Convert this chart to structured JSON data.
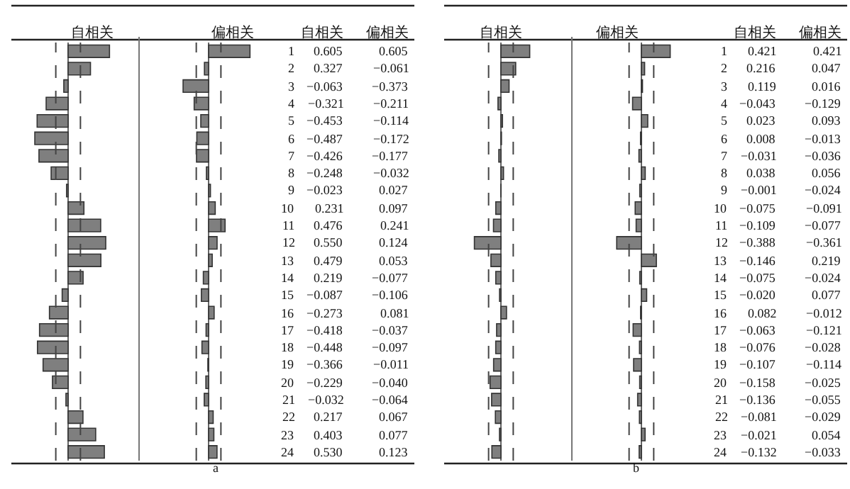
{
  "chart_data": [
    {
      "type": "bar",
      "orientation": "horizontal",
      "title": "自相关",
      "annotations": [
        "自相关",
        "a"
      ],
      "tick_labels": "y",
      "categories": [
        "1",
        "2",
        "3",
        "4",
        "5",
        "6",
        "7",
        "8",
        "9",
        "10",
        "11",
        "12",
        "13",
        "14",
        "15",
        "16",
        "17",
        "18",
        "19",
        "20",
        "21",
        "22",
        "23",
        "24"
      ],
      "series": [
        {
          "color": "#7f7f7f",
          "values": [
            0.605,
            0.327,
            -0.063,
            -0.321,
            -0.453,
            -0.487,
            -0.426,
            -0.248,
            -0.023,
            0.231,
            0.476,
            0.55,
            0.479,
            0.219,
            -0.087,
            -0.273,
            -0.418,
            -0.448,
            -0.366,
            -0.229,
            -0.032,
            0.217,
            0.403,
            0.53
          ],
          "value_labels": [
            "0.605",
            "0.327",
            "−0.063",
            "−0.321",
            "−0.453",
            "−0.487",
            "−0.426",
            "−0.248",
            "−0.023",
            "0.231",
            "0.476",
            "0.550",
            "0.479",
            "0.219",
            "−0.087",
            "−0.273",
            "−0.418",
            "−0.448",
            "−0.366",
            "−0.229",
            "−0.032",
            "0.217",
            "0.403",
            "0.530"
          ]
        }
      ],
      "ref_lines": [
        {
          "axis": "x",
          "value": -0.18,
          "line_style": "dashed",
          "color": "#444444"
        },
        {
          "axis": "x",
          "value": 0.18,
          "line_style": "dashed",
          "color": "#444444"
        }
      ]
    },
    {
      "type": "bar",
      "orientation": "horizontal",
      "title": "偏相关",
      "annotations": [
        "偏相关"
      ],
      "tick_labels": false,
      "categories": [
        "1",
        "2",
        "3",
        "4",
        "5",
        "6",
        "7",
        "8",
        "9",
        "10",
        "11",
        "12",
        "13",
        "14",
        "15",
        "16",
        "17",
        "18",
        "19",
        "20",
        "21",
        "22",
        "23",
        "24"
      ],
      "series": [
        {
          "color": "#7f7f7f",
          "values": [
            0.605,
            -0.061,
            -0.373,
            -0.211,
            -0.114,
            -0.172,
            -0.177,
            -0.032,
            0.027,
            0.097,
            0.241,
            0.124,
            0.053,
            -0.077,
            -0.106,
            0.081,
            -0.037,
            -0.097,
            -0.011,
            -0.04,
            -0.064,
            0.067,
            0.077,
            0.123
          ],
          "value_labels": [
            "0.605",
            "−0.061",
            "−0.373",
            "−0.211",
            "−0.114",
            "−0.172",
            "−0.177",
            "−0.032",
            "0.027",
            "0.097",
            "0.241",
            "0.124",
            "0.053",
            "−0.077",
            "−0.106",
            "0.081",
            "−0.037",
            "−0.097",
            "−0.011",
            "−0.040",
            "−0.064",
            "0.067",
            "0.077",
            "0.123"
          ]
        }
      ],
      "ref_lines": [
        {
          "axis": "x",
          "value": -0.18,
          "line_style": "dashed",
          "color": "#444444"
        },
        {
          "axis": "x",
          "value": 0.18,
          "line_style": "dashed",
          "color": "#444444"
        }
      ]
    },
    {
      "type": "bar",
      "orientation": "horizontal",
      "title": "自相关",
      "annotations": [
        "自相关",
        "b"
      ],
      "tick_labels": "y",
      "categories": [
        "1",
        "2",
        "3",
        "4",
        "5",
        "6",
        "7",
        "8",
        "9",
        "10",
        "11",
        "12",
        "13",
        "14",
        "15",
        "16",
        "17",
        "18",
        "19",
        "20",
        "21",
        "22",
        "23",
        "24"
      ],
      "series": [
        {
          "color": "#7f7f7f",
          "values": [
            0.421,
            0.216,
            0.119,
            -0.043,
            0.023,
            0.008,
            -0.031,
            0.038,
            -0.001,
            -0.075,
            -0.109,
            -0.388,
            -0.146,
            -0.075,
            -0.02,
            0.082,
            -0.063,
            -0.076,
            -0.107,
            -0.158,
            -0.136,
            -0.081,
            -0.021,
            -0.132
          ],
          "value_labels": [
            "0.421",
            "0.216",
            "0.119",
            "−0.043",
            "0.023",
            "0.008",
            "−0.031",
            "0.038",
            "−0.001",
            "−0.075",
            "−0.109",
            "−0.388",
            "−0.146",
            "−0.075",
            "−0.020",
            "0.082",
            "−0.063",
            "−0.076",
            "−0.107",
            "−0.158",
            "−0.136",
            "−0.081",
            "−0.021",
            "−0.132"
          ]
        }
      ],
      "ref_lines": [
        {
          "axis": "x",
          "value": -0.18,
          "line_style": "dashed",
          "color": "#444444"
        },
        {
          "axis": "x",
          "value": 0.18,
          "line_style": "dashed",
          "color": "#444444"
        }
      ]
    },
    {
      "type": "bar",
      "orientation": "horizontal",
      "title": "偏相关",
      "annotations": [
        "偏相关"
      ],
      "tick_labels": false,
      "categories": [
        "1",
        "2",
        "3",
        "4",
        "5",
        "6",
        "7",
        "8",
        "9",
        "10",
        "11",
        "12",
        "13",
        "14",
        "15",
        "16",
        "17",
        "18",
        "19",
        "20",
        "21",
        "22",
        "23",
        "24"
      ],
      "series": [
        {
          "color": "#7f7f7f",
          "values": [
            0.421,
            0.047,
            0.016,
            -0.129,
            0.093,
            -0.013,
            -0.036,
            0.056,
            -0.024,
            -0.091,
            -0.077,
            -0.361,
            0.219,
            -0.024,
            0.077,
            -0.012,
            -0.121,
            -0.028,
            -0.114,
            -0.025,
            -0.055,
            -0.029,
            0.054,
            -0.033
          ],
          "value_labels": [
            "0.421",
            "0.047",
            "0.016",
            "−0.129",
            "0.093",
            "−0.013",
            "−0.036",
            "0.056",
            "−0.024",
            "−0.091",
            "−0.077",
            "−0.361",
            "0.219",
            "−0.024",
            "0.077",
            "−0.012",
            "−0.121",
            "−0.028",
            "−0.114",
            "−0.025",
            "−0.055",
            "−0.029",
            "0.054",
            "−0.033"
          ]
        }
      ],
      "ref_lines": [
        {
          "axis": "x",
          "value": -0.18,
          "line_style": "dashed",
          "color": "#444444"
        },
        {
          "axis": "x",
          "value": 0.18,
          "line_style": "dashed",
          "color": "#444444"
        }
      ]
    }
  ]
}
